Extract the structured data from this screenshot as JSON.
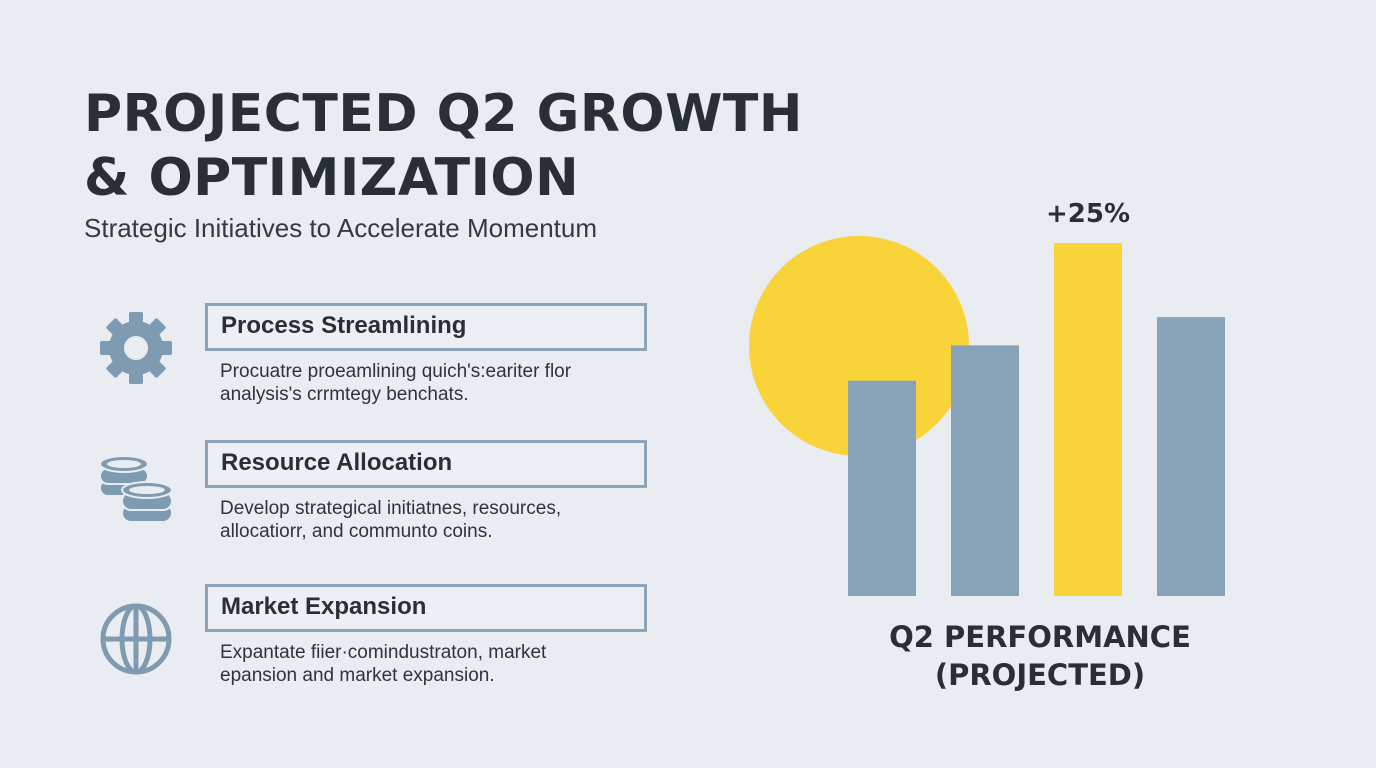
{
  "header": {
    "title_line1": "PROJECTED Q2 GROWTH",
    "title_line2": "& OPTIMIZATION",
    "subtitle": "Strategic Initiatives to Accelerate Momentum"
  },
  "initiatives": [
    {
      "icon": "gear-icon",
      "title": "Process Streamlining",
      "line1": "Procuatre proeamlining quich's:eariter flor",
      "line2": "analysis's crrmtegy benchats."
    },
    {
      "icon": "coins-icon",
      "title": "Resource Allocation",
      "line1": "Develop strategical initiatnes, resources,",
      "line2": "allocatiorr, and communto coins."
    },
    {
      "icon": "globe-icon",
      "title": "Market Expansion",
      "line1": "Expantate fiier·comindustraton, market",
      "line2": "epansion and market expansion."
    }
  ],
  "chart_data": {
    "type": "bar",
    "title_line1": "Q2 PERFORMANCE",
    "title_line2": "(PROJECTED)",
    "relative_levels": [
      0.61,
      0.71,
      1.0,
      0.79
    ],
    "highlight_index": 2,
    "highlight_label": "+25%",
    "colors": {
      "bar": "#88a3b8",
      "highlight": "#f8d33a",
      "circle": "#f8d33a"
    }
  },
  "colors": {
    "background": "#e9ecf1",
    "text": "#2a2f36",
    "icon": "#7f9bb1",
    "box_border": "#8ea3b6"
  }
}
